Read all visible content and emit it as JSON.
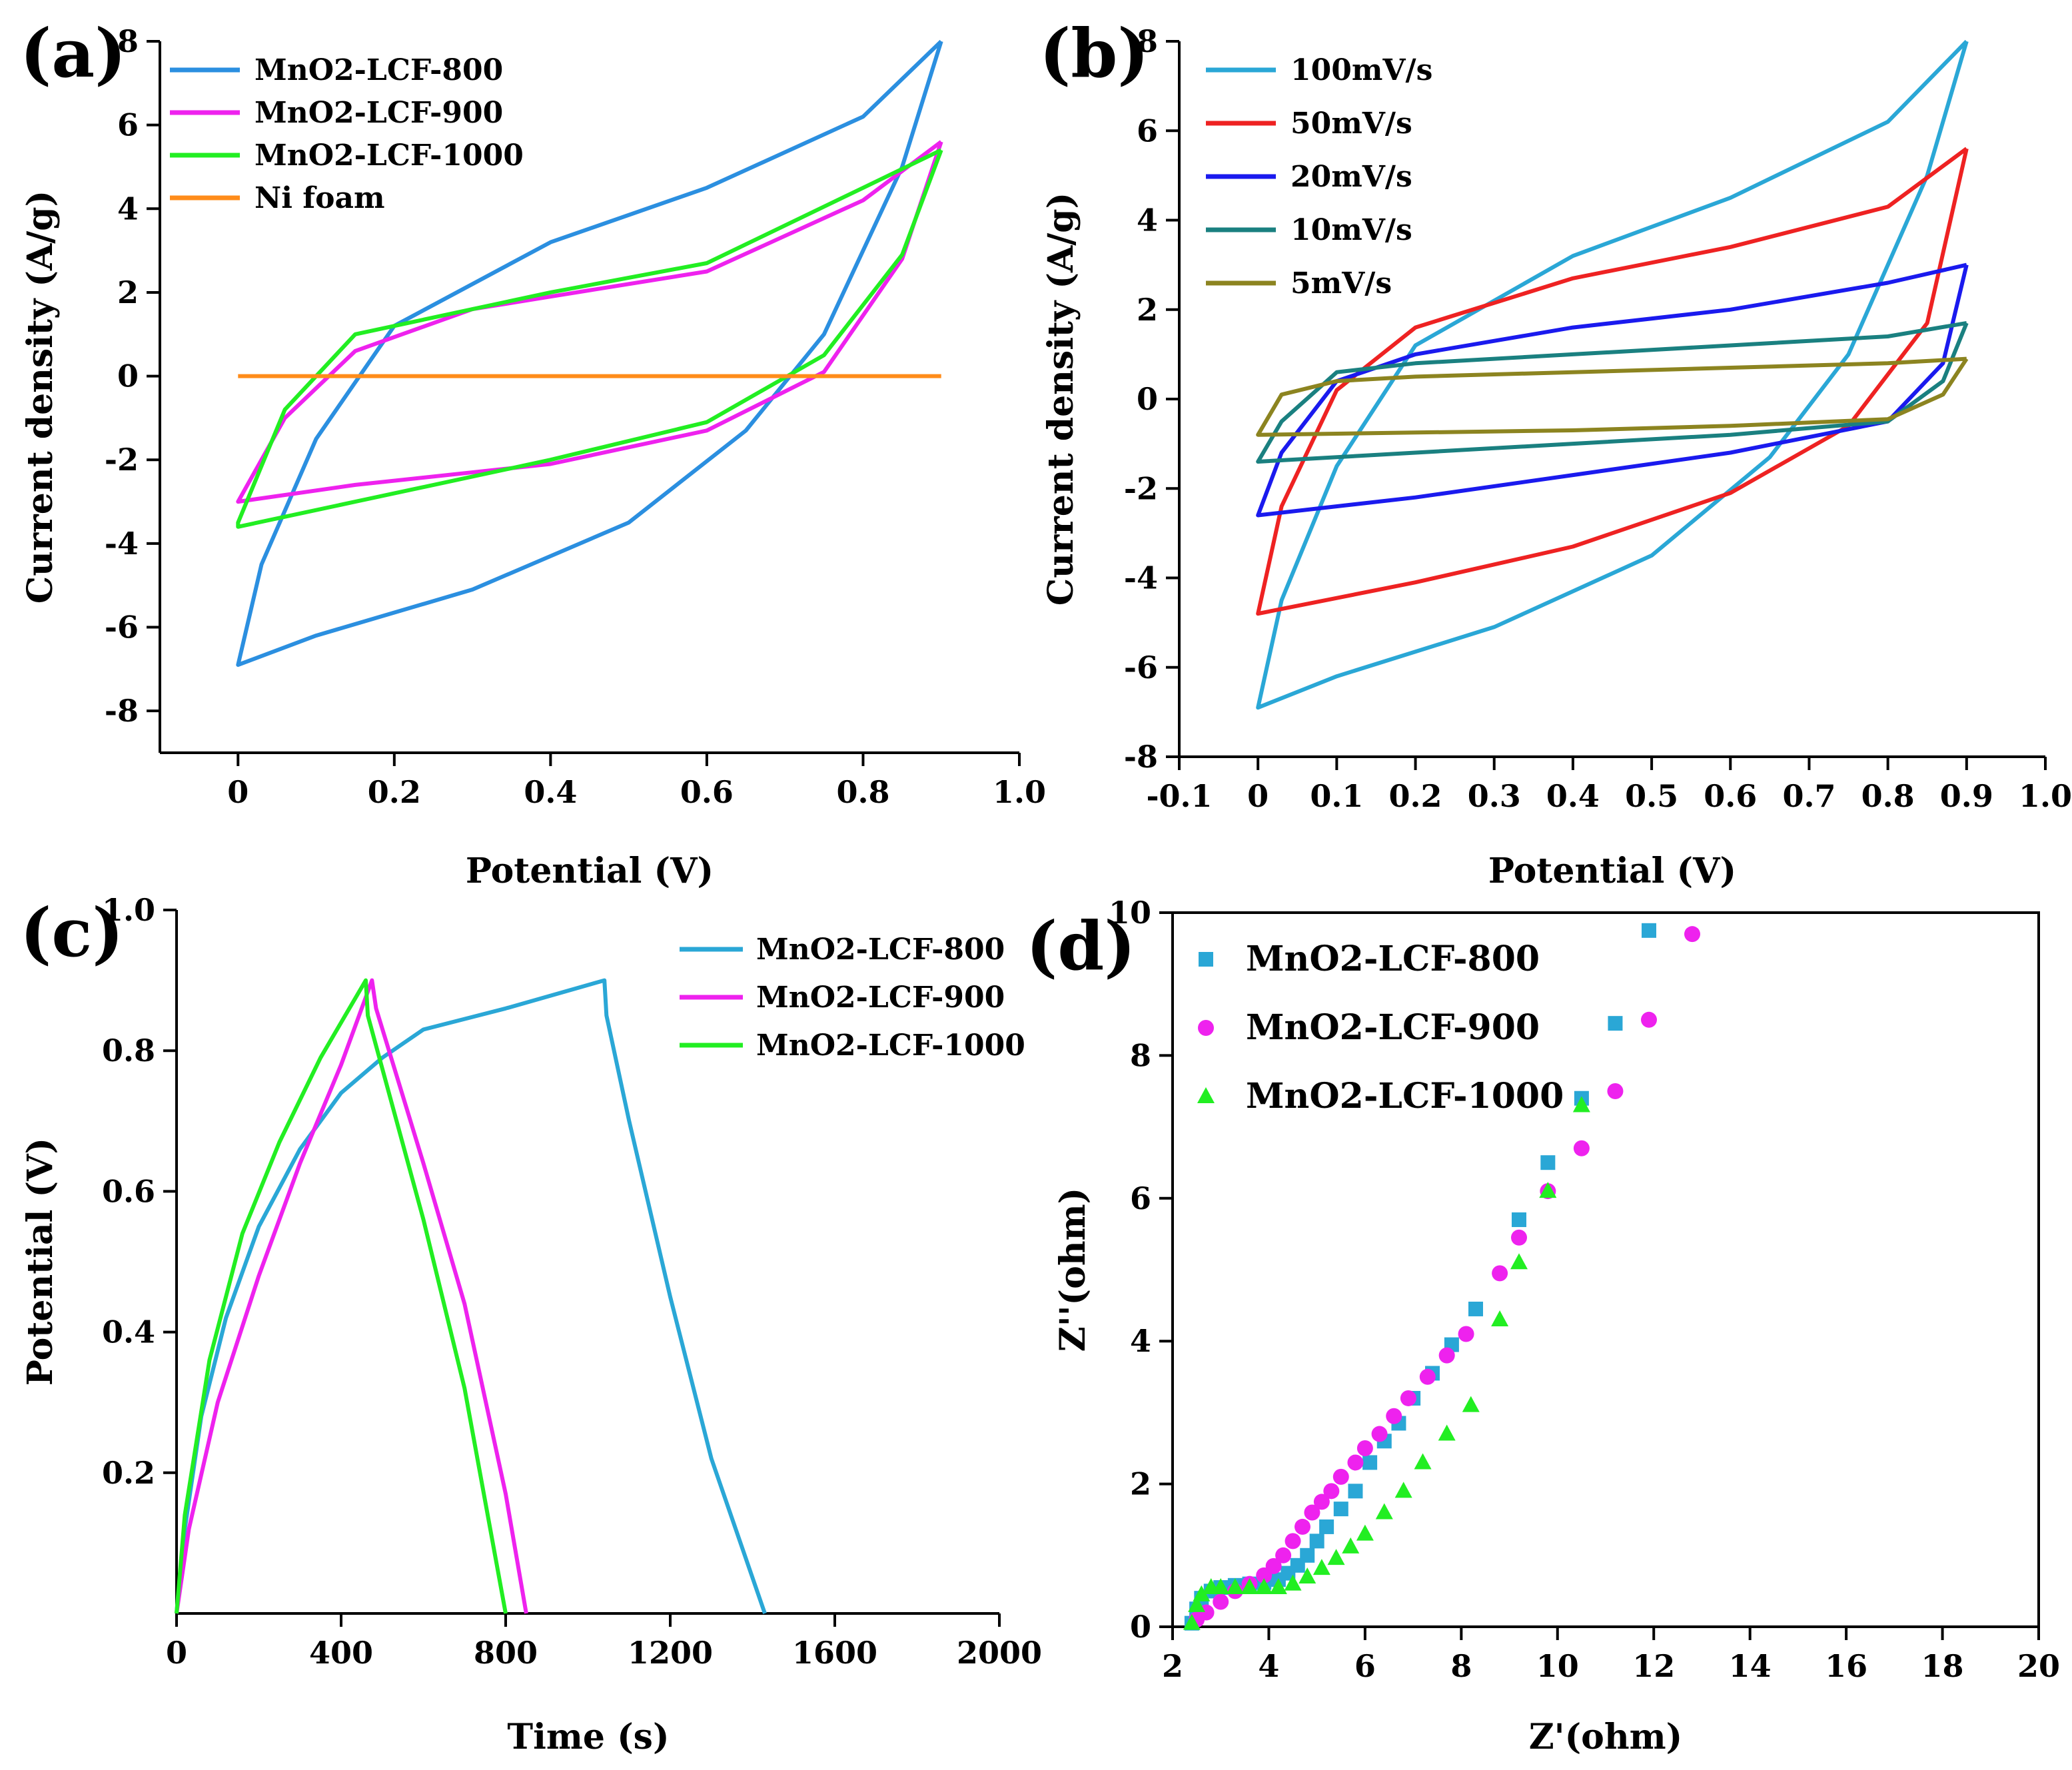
{
  "chart_data": [
    {
      "panel": "(a)",
      "type": "line",
      "xlabel": "Potential (V)",
      "ylabel": "Current density (A/g)",
      "xlim": [
        -0.1,
        1.0
      ],
      "ylim": [
        -9,
        8
      ],
      "xticks": [
        0,
        0.2,
        0.4,
        0.6,
        0.8,
        1.0
      ],
      "xtick_labels": [
        "0",
        "0.2",
        "0.4",
        "0.6",
        "0.8",
        "1.0"
      ],
      "yticks": [
        -8,
        -6,
        -4,
        -2,
        0,
        2,
        4,
        6,
        8
      ],
      "ytick_labels": [
        "-8",
        "-6",
        "-4",
        "-2",
        "0",
        "2",
        "4",
        "6",
        "8"
      ],
      "legend_position": "top-left",
      "series": [
        {
          "name": "MnO2-LCF-800",
          "color": "#2b8fe0",
          "x": [
            0.9,
            0.8,
            0.6,
            0.4,
            0.2,
            0.1,
            0.03,
            0.0,
            0.0,
            0.1,
            0.3,
            0.5,
            0.65,
            0.75,
            0.85,
            0.9
          ],
          "y": [
            8.0,
            6.2,
            4.5,
            3.2,
            1.2,
            -1.5,
            -4.5,
            -6.9,
            -6.9,
            -6.2,
            -5.1,
            -3.5,
            -1.3,
            1.0,
            5.0,
            8.0
          ]
        },
        {
          "name": "MnO2-LCF-900",
          "color": "#ee22ee",
          "x": [
            0.9,
            0.8,
            0.6,
            0.4,
            0.3,
            0.15,
            0.06,
            0.0,
            0.0,
            0.15,
            0.4,
            0.6,
            0.75,
            0.85,
            0.9
          ],
          "y": [
            5.6,
            4.2,
            2.5,
            1.9,
            1.6,
            0.6,
            -1.0,
            -3.0,
            -3.0,
            -2.6,
            -2.1,
            -1.3,
            0.1,
            2.8,
            5.6
          ]
        },
        {
          "name": "MnO2-LCF-1000",
          "color": "#22ee22",
          "x": [
            0.9,
            0.8,
            0.6,
            0.4,
            0.3,
            0.15,
            0.06,
            0.0,
            0.0,
            0.15,
            0.4,
            0.6,
            0.75,
            0.85,
            0.9
          ],
          "y": [
            5.4,
            4.5,
            2.7,
            2.0,
            1.6,
            1.0,
            -0.8,
            -3.5,
            -3.6,
            -3.0,
            -2.0,
            -1.1,
            0.5,
            2.9,
            5.4
          ]
        },
        {
          "name": "Ni foam",
          "color": "#ff8c1a",
          "x": [
            0.0,
            0.9
          ],
          "y": [
            0.0,
            0.0
          ]
        }
      ]
    },
    {
      "panel": "(b)",
      "type": "line",
      "xlabel": "Potential (V)",
      "ylabel": "Current density (A/g)",
      "xlim": [
        -0.1,
        1.0
      ],
      "ylim": [
        -8,
        8
      ],
      "xticks": [
        -0.1,
        0,
        0.1,
        0.2,
        0.3,
        0.4,
        0.5,
        0.6,
        0.7,
        0.8,
        0.9,
        1.0
      ],
      "xtick_labels": [
        "-0.1",
        "0",
        "0.1",
        "0.2",
        "0.3",
        "0.4",
        "0.5",
        "0.6",
        "0.7",
        "0.8",
        "0.9",
        "1.0"
      ],
      "yticks": [
        -8,
        -6,
        -4,
        -2,
        0,
        2,
        4,
        6,
        8
      ],
      "ytick_labels": [
        "-8",
        "-6",
        "-4",
        "-2",
        "0",
        "2",
        "4",
        "6",
        "8"
      ],
      "legend_position": "top-left",
      "series": [
        {
          "name": "100mV/s",
          "color": "#2aa7d6",
          "x": [
            0.9,
            0.8,
            0.6,
            0.4,
            0.2,
            0.1,
            0.03,
            0.0,
            0.0,
            0.1,
            0.3,
            0.5,
            0.65,
            0.75,
            0.85,
            0.9
          ],
          "y": [
            8.0,
            6.2,
            4.5,
            3.2,
            1.2,
            -1.5,
            -4.5,
            -6.9,
            -6.9,
            -6.2,
            -5.1,
            -3.5,
            -1.3,
            1.0,
            5.0,
            8.0
          ]
        },
        {
          "name": "50mV/s",
          "color": "#ee2222",
          "x": [
            0.9,
            0.8,
            0.6,
            0.4,
            0.2,
            0.1,
            0.03,
            0.0,
            0.0,
            0.2,
            0.4,
            0.6,
            0.75,
            0.85,
            0.9
          ],
          "y": [
            5.6,
            4.3,
            3.4,
            2.7,
            1.6,
            0.2,
            -2.4,
            -4.8,
            -4.8,
            -4.1,
            -3.3,
            -2.1,
            -0.6,
            1.7,
            5.6
          ]
        },
        {
          "name": "20mV/s",
          "color": "#1a1aee",
          "x": [
            0.9,
            0.8,
            0.6,
            0.4,
            0.2,
            0.1,
            0.03,
            0.0,
            0.0,
            0.2,
            0.4,
            0.6,
            0.8,
            0.87,
            0.9
          ],
          "y": [
            3.0,
            2.6,
            2.0,
            1.6,
            1.0,
            0.4,
            -1.2,
            -2.6,
            -2.6,
            -2.2,
            -1.7,
            -1.2,
            -0.5,
            0.8,
            3.0
          ]
        },
        {
          "name": "10mV/s",
          "color": "#1a8080",
          "x": [
            0.9,
            0.8,
            0.6,
            0.4,
            0.2,
            0.1,
            0.03,
            0.0,
            0.0,
            0.2,
            0.4,
            0.6,
            0.8,
            0.87,
            0.9
          ],
          "y": [
            1.7,
            1.4,
            1.2,
            1.0,
            0.8,
            0.6,
            -0.5,
            -1.4,
            -1.4,
            -1.2,
            -1.0,
            -0.8,
            -0.5,
            0.4,
            1.7
          ]
        },
        {
          "name": "5mV/s",
          "color": "#8c8420",
          "x": [
            0.9,
            0.8,
            0.6,
            0.4,
            0.2,
            0.1,
            0.03,
            0.0,
            0.0,
            0.2,
            0.4,
            0.6,
            0.8,
            0.87,
            0.9
          ],
          "y": [
            0.9,
            0.8,
            0.7,
            0.6,
            0.5,
            0.4,
            0.1,
            -0.8,
            -0.8,
            -0.75,
            -0.7,
            -0.6,
            -0.45,
            0.1,
            0.9
          ]
        }
      ]
    },
    {
      "panel": "(c)",
      "type": "line",
      "xlabel": "Time (s)",
      "ylabel": "Potential (V)",
      "xlim": [
        0,
        2000
      ],
      "ylim": [
        0,
        1.0
      ],
      "xticks": [
        0,
        400,
        800,
        1200,
        1600,
        2000
      ],
      "xtick_labels": [
        "0",
        "400",
        "800",
        "1200",
        "1600",
        "2000"
      ],
      "yticks": [
        0.2,
        0.4,
        0.6,
        0.8,
        1.0
      ],
      "ytick_labels": [
        "0.2",
        "0.4",
        "0.6",
        "0.8",
        "1.0"
      ],
      "legend_position": "top-right",
      "series": [
        {
          "name": "MnO2-LCF-800",
          "color": "#2aa7d6",
          "x": [
            0,
            20,
            60,
            120,
            200,
            300,
            400,
            500,
            600,
            800,
            1040,
            1045,
            1100,
            1200,
            1300,
            1430
          ],
          "y": [
            0.0,
            0.12,
            0.28,
            0.42,
            0.55,
            0.66,
            0.74,
            0.79,
            0.83,
            0.86,
            0.9,
            0.85,
            0.7,
            0.45,
            0.22,
            0.0
          ]
        },
        {
          "name": "MnO2-LCF-900",
          "color": "#ee22ee",
          "x": [
            0,
            30,
            100,
            200,
            300,
            400,
            475,
            485,
            600,
            700,
            800,
            850
          ],
          "y": [
            0.0,
            0.12,
            0.3,
            0.48,
            0.64,
            0.78,
            0.9,
            0.86,
            0.64,
            0.44,
            0.17,
            0.0
          ]
        },
        {
          "name": "MnO2-LCF-1000",
          "color": "#22ee22",
          "x": [
            0,
            20,
            80,
            160,
            250,
            350,
            460,
            465,
            600,
            700,
            800
          ],
          "y": [
            0.0,
            0.14,
            0.36,
            0.54,
            0.67,
            0.79,
            0.9,
            0.85,
            0.56,
            0.32,
            0.0
          ]
        }
      ]
    },
    {
      "panel": "(d)",
      "type": "scatter",
      "xlabel": "Z'(ohm)",
      "ylabel": "Z''(ohm)",
      "xlim": [
        2,
        20
      ],
      "ylim": [
        0,
        10
      ],
      "xticks": [
        2,
        4,
        6,
        8,
        10,
        12,
        14,
        16,
        18,
        20
      ],
      "xtick_labels": [
        "2",
        "4",
        "6",
        "8",
        "10",
        "12",
        "14",
        "16",
        "18",
        "20"
      ],
      "yticks": [
        0,
        2,
        4,
        6,
        8,
        10
      ],
      "ytick_labels": [
        "0",
        "2",
        "4",
        "6",
        "8",
        "10"
      ],
      "legend_position": "top-left",
      "series": [
        {
          "name": "MnO2-LCF-800",
          "color": "#2aa7d6",
          "marker": "square",
          "x": [
            2.4,
            2.5,
            2.6,
            2.8,
            3.0,
            3.3,
            3.6,
            3.9,
            4.2,
            4.4,
            4.6,
            4.8,
            5.0,
            5.2,
            5.5,
            5.8,
            6.1,
            6.4,
            6.7,
            7.0,
            7.4,
            7.8,
            8.3,
            9.2,
            9.8,
            10.5,
            11.2,
            11.9
          ],
          "y": [
            0.05,
            0.25,
            0.4,
            0.5,
            0.55,
            0.58,
            0.6,
            0.62,
            0.66,
            0.75,
            0.86,
            1.0,
            1.2,
            1.4,
            1.65,
            1.9,
            2.3,
            2.6,
            2.85,
            3.2,
            3.55,
            3.95,
            4.45,
            5.7,
            6.5,
            7.4,
            8.45,
            9.75
          ]
        },
        {
          "name": "MnO2-LCF-900",
          "color": "#ee22ee",
          "marker": "circle",
          "x": [
            2.5,
            2.7,
            3.0,
            3.3,
            3.6,
            3.9,
            4.1,
            4.3,
            4.5,
            4.7,
            4.9,
            5.1,
            5.3,
            5.5,
            5.8,
            6.0,
            6.3,
            6.6,
            6.9,
            7.3,
            7.7,
            8.1,
            8.8,
            9.2,
            9.8,
            10.5,
            11.2,
            11.9,
            12.8
          ],
          "y": [
            0.1,
            0.2,
            0.35,
            0.5,
            0.6,
            0.72,
            0.85,
            1.0,
            1.2,
            1.4,
            1.6,
            1.75,
            1.9,
            2.1,
            2.3,
            2.5,
            2.7,
            2.95,
            3.2,
            3.5,
            3.8,
            4.1,
            4.95,
            5.45,
            6.1,
            6.7,
            7.5,
            8.5,
            9.7
          ]
        },
        {
          "name": "MnO2-LCF-1000",
          "color": "#22ee22",
          "marker": "triangle",
          "x": [
            2.4,
            2.5,
            2.6,
            2.8,
            3.0,
            3.3,
            3.6,
            3.9,
            4.2,
            4.5,
            4.8,
            5.1,
            5.4,
            5.7,
            6.0,
            6.4,
            6.8,
            7.2,
            7.7,
            8.2,
            8.8,
            9.2,
            9.8,
            10.5
          ],
          "y": [
            0.05,
            0.3,
            0.45,
            0.55,
            0.55,
            0.55,
            0.55,
            0.55,
            0.55,
            0.6,
            0.7,
            0.82,
            0.96,
            1.12,
            1.3,
            1.6,
            1.9,
            2.3,
            2.7,
            3.1,
            4.3,
            5.1,
            6.1,
            7.3
          ]
        }
      ]
    }
  ]
}
